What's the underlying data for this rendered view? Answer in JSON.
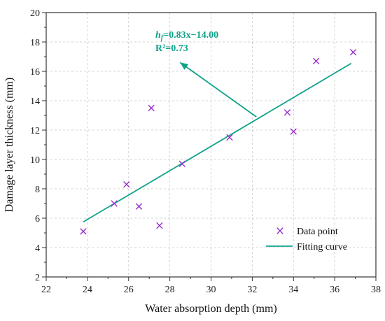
{
  "chart_data": {
    "type": "scatter",
    "title": "",
    "xlabel": "Water absorption depth (mm)",
    "ylabel": "Damage layer thickness (mm)",
    "xlim": [
      22,
      38
    ],
    "ylim": [
      2,
      20
    ],
    "xticks": [
      22,
      24,
      26,
      28,
      30,
      32,
      34,
      36,
      38
    ],
    "yticks": [
      2,
      4,
      6,
      8,
      10,
      12,
      14,
      16,
      18,
      20
    ],
    "grid": true,
    "legend_placement": "bottom-right",
    "series": [
      {
        "name": "Data point",
        "kind": "scatter",
        "marker": "x",
        "color": "#9a2fcf",
        "points": [
          {
            "x": 23.8,
            "y": 5.1
          },
          {
            "x": 25.3,
            "y": 7.0
          },
          {
            "x": 25.9,
            "y": 8.3
          },
          {
            "x": 26.5,
            "y": 6.8
          },
          {
            "x": 27.1,
            "y": 13.5
          },
          {
            "x": 27.5,
            "y": 5.5
          },
          {
            "x": 28.6,
            "y": 9.7
          },
          {
            "x": 30.9,
            "y": 11.5
          },
          {
            "x": 33.7,
            "y": 13.2
          },
          {
            "x": 34.0,
            "y": 11.9
          },
          {
            "x": 35.1,
            "y": 16.7
          },
          {
            "x": 36.9,
            "y": 17.3
          }
        ]
      },
      {
        "name": "Fitting curve",
        "kind": "line",
        "color": "#10a389",
        "points": [
          {
            "x": 23.8,
            "y": 5.75
          },
          {
            "x": 36.8,
            "y": 16.54
          }
        ]
      }
    ],
    "annotation": {
      "equation_h": "h",
      "equation_sub": "f",
      "equation_rest": "=0.83x−14.00",
      "r2_label": "R²=0.73",
      "color": "#10a389",
      "arrow_from": {
        "x": 32.2,
        "y": 12.9
      },
      "arrow_to": {
        "x": 28.5,
        "y": 16.6
      }
    }
  }
}
